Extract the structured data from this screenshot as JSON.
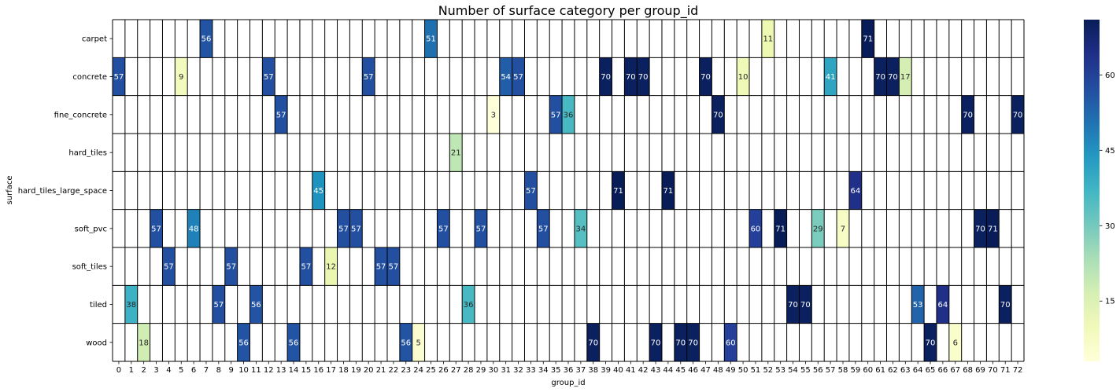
{
  "chart_data": {
    "type": "heatmap",
    "title": "Number of surface category per group_id",
    "xlabel": "group_id",
    "ylabel": "surface",
    "x": [
      "0",
      "1",
      "2",
      "3",
      "4",
      "5",
      "6",
      "7",
      "8",
      "9",
      "10",
      "11",
      "12",
      "13",
      "14",
      "15",
      "16",
      "17",
      "18",
      "19",
      "20",
      "21",
      "22",
      "23",
      "24",
      "25",
      "26",
      "27",
      "28",
      "29",
      "30",
      "31",
      "32",
      "33",
      "34",
      "35",
      "36",
      "37",
      "38",
      "39",
      "40",
      "41",
      "42",
      "43",
      "44",
      "45",
      "46",
      "47",
      "48",
      "49",
      "50",
      "51",
      "52",
      "53",
      "54",
      "55",
      "56",
      "57",
      "58",
      "59",
      "60",
      "61",
      "62",
      "63",
      "64",
      "65",
      "66",
      "67",
      "68",
      "69",
      "70",
      "71",
      "72"
    ],
    "y": [
      "carpet",
      "concrete",
      "fine_concrete",
      "hard_tiles",
      "hard_tiles_large_space",
      "soft_pvc",
      "soft_tiles",
      "tiled",
      "wood"
    ],
    "cells": [
      [
        "7",
        "carpet",
        56
      ],
      [
        "25",
        "carpet",
        51
      ],
      [
        "52",
        "carpet",
        11
      ],
      [
        "60",
        "carpet",
        71
      ],
      [
        "0",
        "concrete",
        57
      ],
      [
        "5",
        "concrete",
        9
      ],
      [
        "12",
        "concrete",
        57
      ],
      [
        "20",
        "concrete",
        57
      ],
      [
        "31",
        "concrete",
        54
      ],
      [
        "32",
        "concrete",
        57
      ],
      [
        "39",
        "concrete",
        70
      ],
      [
        "41",
        "concrete",
        70
      ],
      [
        "42",
        "concrete",
        70
      ],
      [
        "47",
        "concrete",
        70
      ],
      [
        "50",
        "concrete",
        10
      ],
      [
        "57",
        "concrete",
        41
      ],
      [
        "61",
        "concrete",
        70
      ],
      [
        "62",
        "concrete",
        70
      ],
      [
        "63",
        "concrete",
        17
      ],
      [
        "13",
        "fine_concrete",
        57
      ],
      [
        "30",
        "fine_concrete",
        3
      ],
      [
        "35",
        "fine_concrete",
        57
      ],
      [
        "36",
        "fine_concrete",
        36
      ],
      [
        "48",
        "fine_concrete",
        70
      ],
      [
        "68",
        "fine_concrete",
        70
      ],
      [
        "72",
        "fine_concrete",
        70
      ],
      [
        "27",
        "hard_tiles",
        21
      ],
      [
        "16",
        "hard_tiles_large_space",
        45
      ],
      [
        "33",
        "hard_tiles_large_space",
        57
      ],
      [
        "40",
        "hard_tiles_large_space",
        71
      ],
      [
        "44",
        "hard_tiles_large_space",
        71
      ],
      [
        "59",
        "hard_tiles_large_space",
        64
      ],
      [
        "3",
        "soft_pvc",
        57
      ],
      [
        "6",
        "soft_pvc",
        48
      ],
      [
        "18",
        "soft_pvc",
        57
      ],
      [
        "19",
        "soft_pvc",
        57
      ],
      [
        "26",
        "soft_pvc",
        57
      ],
      [
        "29",
        "soft_pvc",
        57
      ],
      [
        "34",
        "soft_pvc",
        57
      ],
      [
        "37",
        "soft_pvc",
        34
      ],
      [
        "51",
        "soft_pvc",
        60
      ],
      [
        "53",
        "soft_pvc",
        71
      ],
      [
        "56",
        "soft_pvc",
        29
      ],
      [
        "58",
        "soft_pvc",
        7
      ],
      [
        "69",
        "soft_pvc",
        70
      ],
      [
        "70",
        "soft_pvc",
        71
      ],
      [
        "4",
        "soft_tiles",
        57
      ],
      [
        "9",
        "soft_tiles",
        57
      ],
      [
        "15",
        "soft_tiles",
        57
      ],
      [
        "17",
        "soft_tiles",
        12
      ],
      [
        "21",
        "soft_tiles",
        57
      ],
      [
        "22",
        "soft_tiles",
        57
      ],
      [
        "1",
        "tiled",
        38
      ],
      [
        "8",
        "tiled",
        57
      ],
      [
        "11",
        "tiled",
        56
      ],
      [
        "28",
        "tiled",
        36
      ],
      [
        "54",
        "tiled",
        70
      ],
      [
        "55",
        "tiled",
        70
      ],
      [
        "64",
        "tiled",
        53
      ],
      [
        "66",
        "tiled",
        64
      ],
      [
        "71",
        "tiled",
        70
      ],
      [
        "2",
        "wood",
        18
      ],
      [
        "10",
        "wood",
        56
      ],
      [
        "14",
        "wood",
        56
      ],
      [
        "23",
        "wood",
        56
      ],
      [
        "24",
        "wood",
        5
      ],
      [
        "38",
        "wood",
        70
      ],
      [
        "43",
        "wood",
        70
      ],
      [
        "45",
        "wood",
        70
      ],
      [
        "46",
        "wood",
        70
      ],
      [
        "49",
        "wood",
        60
      ],
      [
        "65",
        "wood",
        70
      ],
      [
        "67",
        "wood",
        6
      ]
    ],
    "colorbar": {
      "min": 3,
      "max": 71,
      "ticks": [
        15,
        30,
        45,
        60
      ],
      "colormap": "YlGnBu"
    },
    "grid": true,
    "legend": "colorbar-right"
  }
}
